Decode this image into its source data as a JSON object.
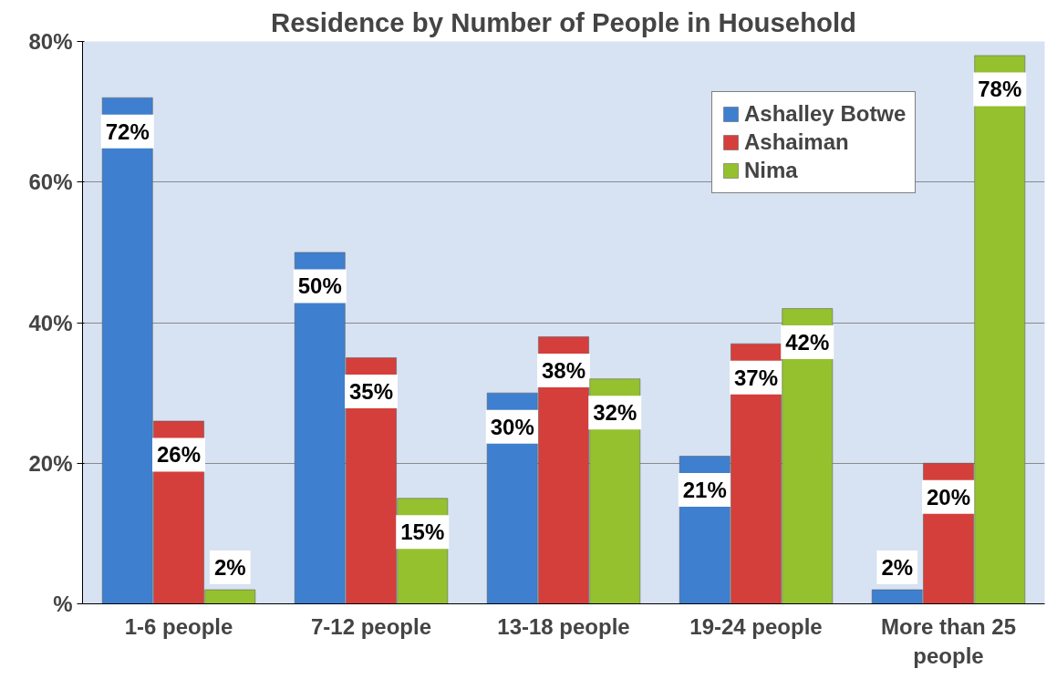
{
  "chart_data": {
    "type": "bar",
    "title": "Residence by Number of People in Household",
    "categories": [
      "1-6 people",
      "7-12 people",
      "13-18 people",
      "19-24 people",
      "More than 25 people"
    ],
    "series": [
      {
        "name": "Ashalley Botwe",
        "color": "#3f7fcf",
        "values": [
          72,
          50,
          30,
          21,
          2
        ],
        "value_labels": [
          "72%",
          "50%",
          "30%",
          "21%",
          "2%"
        ]
      },
      {
        "name": "Ashaiman",
        "color": "#d43f3b",
        "values": [
          26,
          35,
          38,
          37,
          20
        ],
        "value_labels": [
          "26%",
          "35%",
          "38%",
          "37%",
          "20%"
        ]
      },
      {
        "name": "Nima",
        "color": "#95c12f",
        "values": [
          2,
          15,
          32,
          42,
          78
        ],
        "value_labels": [
          "2%",
          "15%",
          "32%",
          "42%",
          "78%"
        ]
      }
    ],
    "ylim": [
      0,
      80
    ],
    "yticks": [
      {
        "value": 0,
        "label": "%"
      },
      {
        "value": 20,
        "label": "20%"
      },
      {
        "value": 40,
        "label": "40%"
      },
      {
        "value": 60,
        "label": "60%"
      },
      {
        "value": 80,
        "label": "80%"
      }
    ],
    "grid": "y",
    "legend": "top right"
  }
}
